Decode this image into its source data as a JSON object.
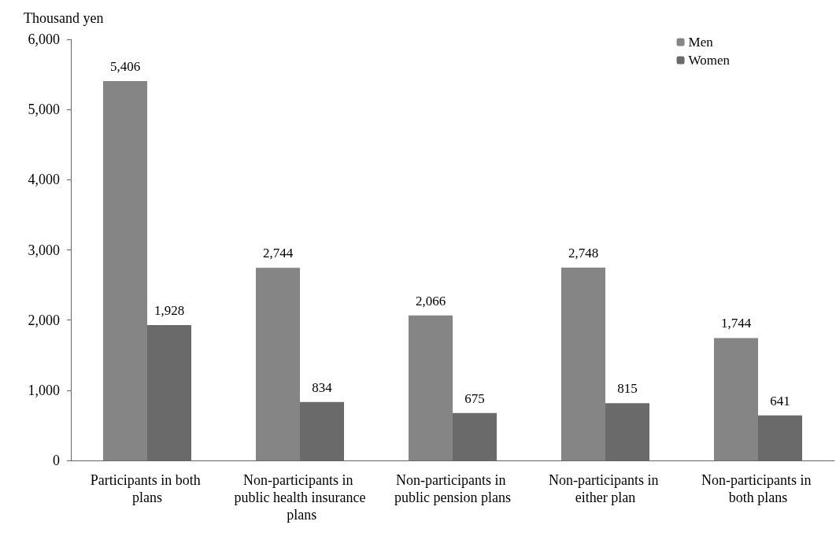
{
  "chart_data": {
    "type": "bar",
    "ylabel": "Thousand yen",
    "categories": [
      "Participants in both plans",
      "Non-participants in public health insurance plans",
      "Non-participants in public pension plans",
      "Non-participants in either plan",
      "Non-participants in both plans"
    ],
    "series": [
      {
        "name": "Men",
        "color": "#858585",
        "values": [
          5406,
          2744,
          2066,
          2748,
          1744
        ],
        "value_labels": [
          "5,406",
          "2,744",
          "2,066",
          "2,748",
          "1,744"
        ]
      },
      {
        "name": "Women",
        "color": "#6a6a6a",
        "values": [
          1928,
          834,
          675,
          815,
          641
        ],
        "value_labels": [
          "1,928",
          "834",
          "675",
          "815",
          "641"
        ]
      }
    ],
    "ylim": [
      0,
      6000
    ],
    "yticks": [
      0,
      {
        "value": 1000,
        "label": "1,000"
      },
      {
        "value": 2000,
        "label": "2,000"
      },
      {
        "value": 3000,
        "label": "3,000"
      },
      {
        "value": 4000,
        "label": "4,000"
      },
      {
        "value": 5000,
        "label": "5,000"
      },
      {
        "value": 6000,
        "label": "6,000"
      }
    ],
    "grid": false,
    "legend": "top right"
  }
}
